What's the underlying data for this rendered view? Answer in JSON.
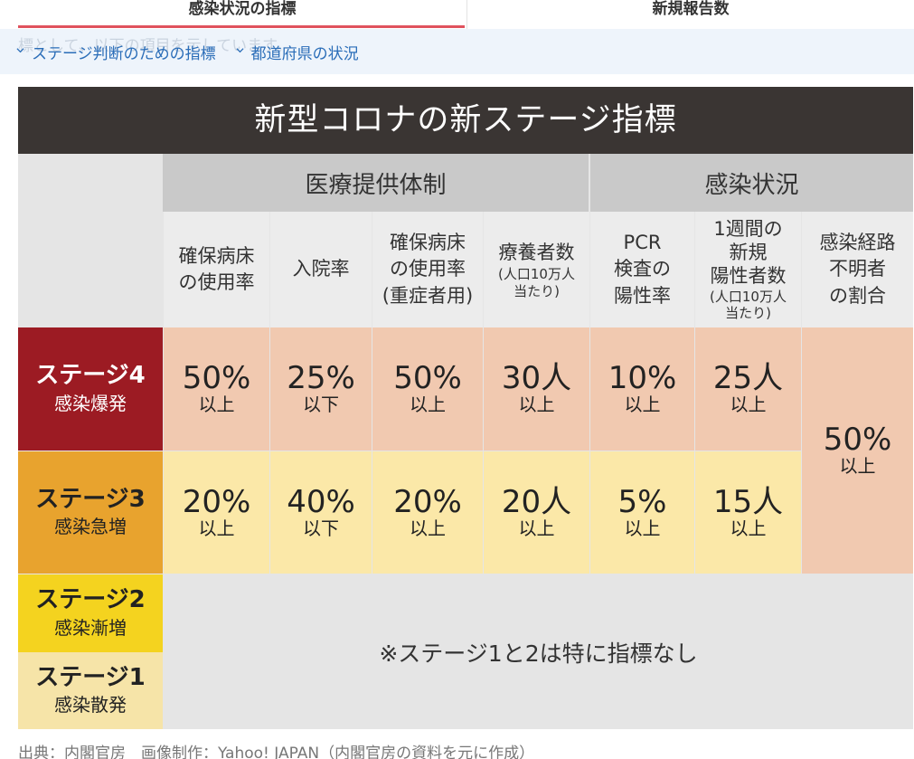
{
  "tabs": [
    {
      "label": "感染状況の指標",
      "active": true
    },
    {
      "label": "新規報告数",
      "active": false
    }
  ],
  "anchor_nav": {
    "ghost_text": "標として、以下の項目を示しています。",
    "links": [
      "ステージ判断のための指標",
      "都道府県の状況"
    ]
  },
  "figure": {
    "title": "新型コロナの新ステージ指標",
    "groups": {
      "medical": "医療提供体制",
      "infection": "感染状況"
    },
    "columns": [
      {
        "main": "確保病床の使用率",
        "l1": "確保病床",
        "l2": "の使用率",
        "l3": "",
        "small": ""
      },
      {
        "main": "入院率",
        "l1": "入院率",
        "l2": "",
        "l3": "",
        "small": ""
      },
      {
        "main": "確保病床の使用率（重症者用）",
        "l1": "確保病床",
        "l2": "の使用率",
        "l3": "(重症者用)",
        "small": ""
      },
      {
        "main": "療養者数",
        "l1": "療養者数",
        "l2": "",
        "l3": "",
        "small": "(人口10万人",
        "small2": "当たり)"
      },
      {
        "main": "PCR検査の陽性率",
        "l1": "PCR",
        "l2": "検査の",
        "l3": "陽性率",
        "small": ""
      },
      {
        "main": "1週間の新規陽性者数",
        "l1": "1週間の",
        "l2": "新規",
        "l3": "陽性者数",
        "small": "(人口10万人",
        "small2": "当たり)"
      },
      {
        "main": "感染経路不明者の割合",
        "l1": "感染経路",
        "l2": "不明者",
        "l3": "の割合",
        "small": ""
      }
    ],
    "stages": [
      {
        "name": "ステージ4",
        "sub": "感染爆発",
        "color": "#9c1b23",
        "values": [
          {
            "v": "50%",
            "c": "以上"
          },
          {
            "v": "25%",
            "c": "以下"
          },
          {
            "v": "50%",
            "c": "以上"
          },
          {
            "v": "30人",
            "c": "以上"
          },
          {
            "v": "10%",
            "c": "以上"
          },
          {
            "v": "25人",
            "c": "以上"
          }
        ]
      },
      {
        "name": "ステージ3",
        "sub": "感染急増",
        "color": "#e8a32e",
        "values": [
          {
            "v": "20%",
            "c": "以上"
          },
          {
            "v": "40%",
            "c": "以下"
          },
          {
            "v": "20%",
            "c": "以上"
          },
          {
            "v": "20人",
            "c": "以上"
          },
          {
            "v": "5%",
            "c": "以上"
          },
          {
            "v": "15人",
            "c": "以上"
          }
        ]
      },
      {
        "name": "ステージ2",
        "sub": "感染漸増",
        "color": "#f4d31f"
      },
      {
        "name": "ステージ1",
        "sub": "感染散発",
        "color": "#f6e4a8"
      }
    ],
    "merged_value": {
      "v": "50%",
      "c": "以上"
    },
    "note": "※ステージ1と2は特に指標なし"
  },
  "credit": "出典：内閣官房　画像制作：Yahoo! JAPAN（内閣官房の資料を元に作成）",
  "colors": {
    "accent_underline": "#e0525d",
    "link": "#2a6db8",
    "header_bg": "#3a3533"
  }
}
